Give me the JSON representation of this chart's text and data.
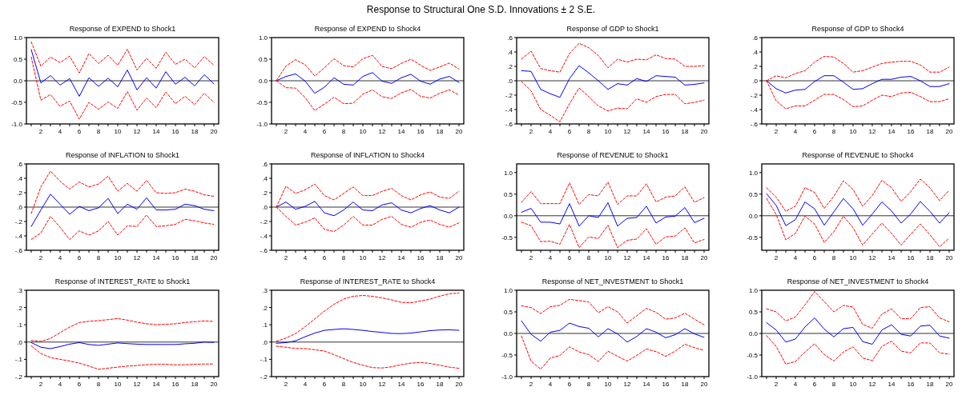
{
  "chart_data": [
    {
      "type": "other",
      "title": "Response to Structural One S.D. Innovations ± 2 S.E."
    },
    {
      "type": "line",
      "title": "Response of EXPEND to Shock1",
      "x": [
        1,
        2,
        3,
        4,
        5,
        6,
        7,
        8,
        9,
        10,
        11,
        12,
        13,
        14,
        15,
        16,
        17,
        18,
        19,
        20
      ],
      "xlim": [
        0.5,
        20.5
      ],
      "xticks": [
        {
          "value": 1,
          "label": null
        },
        2,
        {
          "value": 3,
          "label": null
        },
        4,
        {
          "value": 5,
          "label": null
        },
        6,
        {
          "value": 7,
          "label": null
        },
        8,
        {
          "value": 9,
          "label": null
        },
        10,
        {
          "value": 11,
          "label": null
        },
        12,
        {
          "value": 13,
          "label": null
        },
        14,
        {
          "value": 15,
          "label": null
        },
        16,
        {
          "value": 17,
          "label": null
        },
        18,
        {
          "value": 19,
          "label": null
        },
        20
      ],
      "ylim": [
        -1,
        1
      ],
      "yticks": [
        {
          "value": -1,
          "label": "-1.0"
        },
        {
          "value": -0.5,
          "label": "-0.5"
        },
        {
          "value": 0,
          "label": "0.0"
        },
        {
          "value": 0.5,
          "label": "0.5"
        },
        {
          "value": 1,
          "label": "1.0"
        }
      ],
      "ref_lines": [
        {
          "axis": "y",
          "value": 0,
          "color": "#333333"
        }
      ],
      "series": [
        {
          "color": "#0000ff",
          "line_style": "solid",
          "values": [
            0.72,
            -0.05,
            0.12,
            -0.1,
            0.05,
            -0.36,
            0.07,
            -0.13,
            0.06,
            -0.14,
            0.25,
            -0.21,
            0.07,
            -0.17,
            0.21,
            -0.08,
            0.08,
            -0.12,
            0.14,
            -0.07
          ]
        },
        {
          "color": "#ff0000",
          "line_style": "dashed",
          "values": [
            0.9,
            0.34,
            0.55,
            0.42,
            0.57,
            0.18,
            0.63,
            0.4,
            0.59,
            0.36,
            0.73,
            0.25,
            0.52,
            0.29,
            0.66,
            0.38,
            0.5,
            0.3,
            0.56,
            0.36
          ]
        },
        {
          "color": "#ff0000",
          "line_style": "dashed",
          "values": [
            0.55,
            -0.45,
            -0.32,
            -0.59,
            -0.47,
            -0.89,
            -0.5,
            -0.66,
            -0.49,
            -0.64,
            -0.25,
            -0.68,
            -0.4,
            -0.62,
            -0.26,
            -0.53,
            -0.36,
            -0.55,
            -0.29,
            -0.5
          ]
        }
      ]
    },
    {
      "type": "line",
      "title": "Response of EXPEND to Shock4",
      "x": [
        1,
        2,
        3,
        4,
        5,
        6,
        7,
        8,
        9,
        10,
        11,
        12,
        13,
        14,
        15,
        16,
        17,
        18,
        19,
        20
      ],
      "xlim": [
        0.5,
        20.5
      ],
      "xticks": [
        {
          "value": 1,
          "label": null
        },
        2,
        {
          "value": 3,
          "label": null
        },
        4,
        {
          "value": 5,
          "label": null
        },
        6,
        {
          "value": 7,
          "label": null
        },
        8,
        {
          "value": 9,
          "label": null
        },
        10,
        {
          "value": 11,
          "label": null
        },
        12,
        {
          "value": 13,
          "label": null
        },
        14,
        {
          "value": 15,
          "label": null
        },
        16,
        {
          "value": 17,
          "label": null
        },
        18,
        {
          "value": 19,
          "label": null
        },
        20
      ],
      "ylim": [
        -1,
        1
      ],
      "yticks": [
        {
          "value": -1,
          "label": "-1.0"
        },
        {
          "value": -0.5,
          "label": "-0.5"
        },
        {
          "value": 0,
          "label": "0.0"
        },
        {
          "value": 0.5,
          "label": "0.5"
        },
        {
          "value": 1,
          "label": "1.0"
        }
      ],
      "ref_lines": [
        {
          "axis": "y",
          "value": 0,
          "color": "#333333"
        }
      ],
      "series": [
        {
          "color": "#0000ff",
          "line_style": "solid",
          "values": [
            0,
            0.1,
            0.16,
            -0.01,
            -0.29,
            -0.15,
            0.07,
            -0.08,
            -0.1,
            0.1,
            0.19,
            -0.01,
            -0.06,
            0.07,
            0.15,
            -0.01,
            -0.08,
            0.04,
            0.1,
            -0.04
          ]
        },
        {
          "color": "#ff0000",
          "line_style": "dashed",
          "values": [
            0,
            0.34,
            0.49,
            0.37,
            0.11,
            0.3,
            0.51,
            0.35,
            0.32,
            0.51,
            0.59,
            0.33,
            0.28,
            0.4,
            0.5,
            0.36,
            0.24,
            0.32,
            0.41,
            0.27
          ]
        },
        {
          "color": "#ff0000",
          "line_style": "dashed",
          "values": [
            0,
            -0.16,
            -0.17,
            -0.39,
            -0.69,
            -0.54,
            -0.38,
            -0.53,
            -0.52,
            -0.31,
            -0.21,
            -0.37,
            -0.41,
            -0.28,
            -0.2,
            -0.36,
            -0.4,
            -0.29,
            -0.21,
            -0.33
          ]
        }
      ]
    },
    {
      "type": "line",
      "title": "Response of GDP to Shock1",
      "x": [
        1,
        2,
        3,
        4,
        5,
        6,
        7,
        8,
        9,
        10,
        11,
        12,
        13,
        14,
        15,
        16,
        17,
        18,
        19,
        20
      ],
      "xlim": [
        0.5,
        20.5
      ],
      "xticks": [
        {
          "value": 1,
          "label": null
        },
        2,
        {
          "value": 3,
          "label": null
        },
        4,
        {
          "value": 5,
          "label": null
        },
        6,
        {
          "value": 7,
          "label": null
        },
        8,
        {
          "value": 9,
          "label": null
        },
        10,
        {
          "value": 11,
          "label": null
        },
        12,
        {
          "value": 13,
          "label": null
        },
        14,
        {
          "value": 15,
          "label": null
        },
        16,
        {
          "value": 17,
          "label": null
        },
        18,
        {
          "value": 19,
          "label": null
        },
        20
      ],
      "ylim": [
        -0.6,
        0.6
      ],
      "yticks": [
        {
          "value": -0.6,
          "label": "-.6"
        },
        {
          "value": -0.4,
          "label": "-.4"
        },
        {
          "value": -0.2,
          "label": "-.2"
        },
        {
          "value": 0,
          "label": ".0"
        },
        {
          "value": 0.2,
          "label": ".2"
        },
        {
          "value": 0.4,
          "label": ".4"
        },
        {
          "value": 0.6,
          "label": ".6"
        }
      ],
      "ref_lines": [
        {
          "axis": "y",
          "value": 0,
          "color": "#333333"
        }
      ],
      "series": [
        {
          "color": "#0000ff",
          "line_style": "solid",
          "values": [
            0.14,
            0.13,
            -0.12,
            -0.18,
            -0.23,
            0.03,
            0.21,
            0.11,
            0.0,
            -0.12,
            -0.04,
            -0.06,
            0.03,
            -0.01,
            0.07,
            0.06,
            0.05,
            -0.06,
            -0.05,
            -0.03
          ]
        },
        {
          "color": "#ff0000",
          "line_style": "dashed",
          "values": [
            0.3,
            0.41,
            0.17,
            0.14,
            0.12,
            0.38,
            0.52,
            0.46,
            0.35,
            0.18,
            0.3,
            0.26,
            0.3,
            0.29,
            0.36,
            0.31,
            0.3,
            0.2,
            0.2,
            0.21
          ]
        },
        {
          "color": "#ff0000",
          "line_style": "dashed",
          "values": [
            -0.01,
            -0.14,
            -0.4,
            -0.48,
            -0.57,
            -0.32,
            -0.1,
            -0.22,
            -0.35,
            -0.42,
            -0.38,
            -0.39,
            -0.25,
            -0.3,
            -0.22,
            -0.19,
            -0.19,
            -0.32,
            -0.3,
            -0.27
          ]
        }
      ]
    },
    {
      "type": "line",
      "title": "Response of GDP to Shock4",
      "x": [
        1,
        2,
        3,
        4,
        5,
        6,
        7,
        8,
        9,
        10,
        11,
        12,
        13,
        14,
        15,
        16,
        17,
        18,
        19,
        20
      ],
      "xlim": [
        0.5,
        20.5
      ],
      "xticks": [
        {
          "value": 1,
          "label": null
        },
        2,
        {
          "value": 3,
          "label": null
        },
        4,
        {
          "value": 5,
          "label": null
        },
        6,
        {
          "value": 7,
          "label": null
        },
        8,
        {
          "value": 9,
          "label": null
        },
        10,
        {
          "value": 11,
          "label": null
        },
        12,
        {
          "value": 13,
          "label": null
        },
        14,
        {
          "value": 15,
          "label": null
        },
        16,
        {
          "value": 17,
          "label": null
        },
        18,
        {
          "value": 19,
          "label": null
        },
        20
      ],
      "ylim": [
        -0.6,
        0.6
      ],
      "yticks": [
        {
          "value": -0.6,
          "label": "-.6"
        },
        {
          "value": -0.4,
          "label": "-.4"
        },
        {
          "value": -0.2,
          "label": "-.2"
        },
        {
          "value": 0,
          "label": ".0"
        },
        {
          "value": 0.2,
          "label": ".2"
        },
        {
          "value": 0.4,
          "label": ".4"
        },
        {
          "value": 0.6,
          "label": ".6"
        }
      ],
      "ref_lines": [
        {
          "axis": "y",
          "value": 0,
          "color": "#333333"
        }
      ],
      "series": [
        {
          "color": "#0000ff",
          "line_style": "solid",
          "values": [
            0,
            -0.11,
            -0.17,
            -0.13,
            -0.12,
            -0.01,
            0.07,
            0.07,
            -0.02,
            -0.12,
            -0.11,
            -0.04,
            0.02,
            0.02,
            0.05,
            0.06,
            0.0,
            -0.08,
            -0.08,
            -0.04
          ]
        },
        {
          "color": "#ff0000",
          "line_style": "dashed",
          "values": [
            0,
            0.07,
            0.04,
            0.1,
            0.14,
            0.26,
            0.34,
            0.33,
            0.24,
            0.12,
            0.14,
            0.19,
            0.24,
            0.26,
            0.27,
            0.27,
            0.22,
            0.12,
            0.12,
            0.19
          ]
        },
        {
          "color": "#ff0000",
          "line_style": "dashed",
          "values": [
            0,
            -0.28,
            -0.39,
            -0.35,
            -0.35,
            -0.27,
            -0.19,
            -0.19,
            -0.26,
            -0.36,
            -0.35,
            -0.27,
            -0.2,
            -0.22,
            -0.17,
            -0.16,
            -0.22,
            -0.29,
            -0.29,
            -0.25
          ]
        }
      ]
    },
    {
      "type": "line",
      "title": "Response of INFLATION to Shock1",
      "x": [
        1,
        2,
        3,
        4,
        5,
        6,
        7,
        8,
        9,
        10,
        11,
        12,
        13,
        14,
        15,
        16,
        17,
        18,
        19,
        20
      ],
      "xlim": [
        0.5,
        20.5
      ],
      "xticks": [
        {
          "value": 1,
          "label": null
        },
        2,
        {
          "value": 3,
          "label": null
        },
        4,
        {
          "value": 5,
          "label": null
        },
        6,
        {
          "value": 7,
          "label": null
        },
        8,
        {
          "value": 9,
          "label": null
        },
        10,
        {
          "value": 11,
          "label": null
        },
        12,
        {
          "value": 13,
          "label": null
        },
        14,
        {
          "value": 15,
          "label": null
        },
        16,
        {
          "value": 17,
          "label": null
        },
        18,
        {
          "value": 19,
          "label": null
        },
        20
      ],
      "ylim": [
        -0.6,
        0.6
      ],
      "yticks": [
        {
          "value": -0.6,
          "label": "-.6"
        },
        {
          "value": -0.4,
          "label": "-.4"
        },
        {
          "value": -0.2,
          "label": "-.2"
        },
        {
          "value": 0,
          "label": ".0"
        },
        {
          "value": 0.2,
          "label": ".2"
        },
        {
          "value": 0.4,
          "label": ".4"
        },
        {
          "value": 0.6,
          "label": ".6"
        }
      ],
      "ref_lines": [
        {
          "axis": "y",
          "value": 0,
          "color": "#333333"
        }
      ],
      "series": [
        {
          "color": "#0000ff",
          "line_style": "solid",
          "values": [
            -0.27,
            -0.04,
            0.18,
            0.04,
            -0.1,
            0.01,
            -0.05,
            -0.01,
            0.12,
            -0.09,
            0.04,
            -0.03,
            0.13,
            -0.04,
            -0.04,
            -0.03,
            0.04,
            0.02,
            -0.03,
            -0.05
          ]
        },
        {
          "color": "#ff0000",
          "line_style": "dashed",
          "values": [
            -0.09,
            0.28,
            0.5,
            0.36,
            0.25,
            0.35,
            0.28,
            0.32,
            0.43,
            0.22,
            0.33,
            0.22,
            0.37,
            0.2,
            0.19,
            0.2,
            0.25,
            0.22,
            0.17,
            0.15
          ]
        },
        {
          "color": "#ff0000",
          "line_style": "dashed",
          "values": [
            -0.45,
            -0.36,
            -0.13,
            -0.28,
            -0.45,
            -0.33,
            -0.39,
            -0.33,
            -0.2,
            -0.39,
            -0.26,
            -0.27,
            -0.11,
            -0.27,
            -0.26,
            -0.24,
            -0.17,
            -0.19,
            -0.22,
            -0.24
          ]
        }
      ]
    },
    {
      "type": "line",
      "title": "Response of INFLATION to Shock4",
      "x": [
        1,
        2,
        3,
        4,
        5,
        6,
        7,
        8,
        9,
        10,
        11,
        12,
        13,
        14,
        15,
        16,
        17,
        18,
        19,
        20
      ],
      "xlim": [
        0.5,
        20.5
      ],
      "xticks": [
        {
          "value": 1,
          "label": null
        },
        2,
        {
          "value": 3,
          "label": null
        },
        4,
        {
          "value": 5,
          "label": null
        },
        6,
        {
          "value": 7,
          "label": null
        },
        8,
        {
          "value": 9,
          "label": null
        },
        10,
        {
          "value": 11,
          "label": null
        },
        12,
        {
          "value": 13,
          "label": null
        },
        14,
        {
          "value": 15,
          "label": null
        },
        16,
        {
          "value": 17,
          "label": null
        },
        18,
        {
          "value": 19,
          "label": null
        },
        20
      ],
      "ylim": [
        -0.6,
        0.6
      ],
      "yticks": [
        {
          "value": -0.6,
          "label": "-.6"
        },
        {
          "value": -0.4,
          "label": "-.4"
        },
        {
          "value": -0.2,
          "label": "-.2"
        },
        {
          "value": 0,
          "label": ".0"
        },
        {
          "value": 0.2,
          "label": ".2"
        },
        {
          "value": 0.4,
          "label": ".4"
        },
        {
          "value": 0.6,
          "label": ".6"
        }
      ],
      "ref_lines": [
        {
          "axis": "y",
          "value": 0,
          "color": "#333333"
        }
      ],
      "series": [
        {
          "color": "#0000ff",
          "line_style": "solid",
          "values": [
            0,
            0.07,
            -0.03,
            0.01,
            0.08,
            -0.08,
            -0.12,
            -0.04,
            0.07,
            -0.04,
            -0.05,
            0.03,
            0.06,
            -0.04,
            -0.08,
            -0.02,
            0.02,
            -0.04,
            -0.08,
            0
          ]
        },
        {
          "color": "#ff0000",
          "line_style": "dashed",
          "values": [
            0,
            0.29,
            0.19,
            0.24,
            0.32,
            0.16,
            0.1,
            0.19,
            0.28,
            0.16,
            0.16,
            0.22,
            0.26,
            0.16,
            0.1,
            0.17,
            0.21,
            0.14,
            0.12,
            0.22
          ]
        },
        {
          "color": "#ff0000",
          "line_style": "dashed",
          "values": [
            0,
            -0.13,
            -0.25,
            -0.21,
            -0.15,
            -0.31,
            -0.34,
            -0.25,
            -0.13,
            -0.25,
            -0.25,
            -0.17,
            -0.13,
            -0.24,
            -0.28,
            -0.21,
            -0.18,
            -0.24,
            -0.28,
            -0.22
          ]
        }
      ]
    },
    {
      "type": "line",
      "title": "Response of REVENUE to Shock1",
      "x": [
        1,
        2,
        3,
        4,
        5,
        6,
        7,
        8,
        9,
        10,
        11,
        12,
        13,
        14,
        15,
        16,
        17,
        18,
        19,
        20
      ],
      "xlim": [
        0.5,
        20.5
      ],
      "xticks": [
        {
          "value": 1,
          "label": null
        },
        2,
        {
          "value": 3,
          "label": null
        },
        4,
        {
          "value": 5,
          "label": null
        },
        6,
        {
          "value": 7,
          "label": null
        },
        8,
        {
          "value": 9,
          "label": null
        },
        10,
        {
          "value": 11,
          "label": null
        },
        12,
        {
          "value": 13,
          "label": null
        },
        14,
        {
          "value": 15,
          "label": null
        },
        16,
        {
          "value": 17,
          "label": null
        },
        18,
        {
          "value": 19,
          "label": null
        },
        20
      ],
      "ylim": [
        -0.8,
        1.2
      ],
      "yticks": [
        {
          "value": -0.5,
          "label": "-0.5"
        },
        {
          "value": 0,
          "label": "0.0"
        },
        {
          "value": 0.5,
          "label": "0.5"
        },
        {
          "value": 1,
          "label": "1.0"
        }
      ],
      "ref_lines": [
        {
          "axis": "y",
          "value": 0,
          "color": "#333333"
        }
      ],
      "series": [
        {
          "color": "#0000ff",
          "line_style": "solid",
          "values": [
            0.08,
            0.17,
            -0.15,
            -0.15,
            -0.19,
            0.28,
            -0.24,
            0.0,
            -0.04,
            0.3,
            -0.24,
            -0.06,
            -0.04,
            0.22,
            -0.17,
            -0.03,
            -0.01,
            0.19,
            -0.16,
            -0.06
          ]
        },
        {
          "color": "#ff0000",
          "line_style": "dashed",
          "values": [
            0.31,
            0.56,
            0.28,
            0.28,
            0.28,
            0.76,
            0.26,
            0.49,
            0.46,
            0.78,
            0.26,
            0.46,
            0.46,
            0.74,
            0.32,
            0.43,
            0.46,
            0.67,
            0.31,
            0.42
          ]
        },
        {
          "color": "#ff0000",
          "line_style": "dashed",
          "values": [
            -0.15,
            -0.23,
            -0.6,
            -0.59,
            -0.66,
            -0.2,
            -0.74,
            -0.49,
            -0.53,
            -0.22,
            -0.74,
            -0.57,
            -0.54,
            -0.3,
            -0.66,
            -0.49,
            -0.47,
            -0.28,
            -0.63,
            -0.55
          ]
        }
      ]
    },
    {
      "type": "line",
      "title": "Response of REVENUE to Shock4",
      "x": [
        1,
        2,
        3,
        4,
        5,
        6,
        7,
        8,
        9,
        10,
        11,
        12,
        13,
        14,
        15,
        16,
        17,
        18,
        19,
        20
      ],
      "xlim": [
        0.5,
        20.5
      ],
      "xticks": [
        {
          "value": 1,
          "label": null
        },
        2,
        {
          "value": 3,
          "label": null
        },
        4,
        {
          "value": 5,
          "label": null
        },
        6,
        {
          "value": 7,
          "label": null
        },
        8,
        {
          "value": 9,
          "label": null
        },
        10,
        {
          "value": 11,
          "label": null
        },
        12,
        {
          "value": 13,
          "label": null
        },
        14,
        {
          "value": 15,
          "label": null
        },
        16,
        {
          "value": 17,
          "label": null
        },
        18,
        {
          "value": 19,
          "label": null
        },
        20
      ],
      "ylim": [
        -0.8,
        1.2
      ],
      "yticks": [
        {
          "value": -0.5,
          "label": "-0.5"
        },
        {
          "value": 0,
          "label": "0.0"
        },
        {
          "value": 0.5,
          "label": "0.5"
        },
        {
          "value": 1,
          "label": "1.0"
        }
      ],
      "ref_lines": [
        {
          "axis": "y",
          "value": 0,
          "color": "#333333"
        }
      ],
      "series": [
        {
          "color": "#0000ff",
          "line_style": "solid",
          "values": [
            0.51,
            0.24,
            -0.23,
            -0.09,
            0.32,
            0.16,
            -0.22,
            0.09,
            0.4,
            0.16,
            -0.22,
            0.04,
            0.32,
            0.11,
            -0.17,
            0.04,
            0.33,
            0.1,
            -0.17,
            0.07
          ]
        },
        {
          "color": "#ff0000",
          "line_style": "dashed",
          "values": [
            0.65,
            0.43,
            0.1,
            0.22,
            0.65,
            0.54,
            0.17,
            0.45,
            0.81,
            0.61,
            0.22,
            0.47,
            0.82,
            0.65,
            0.33,
            0.56,
            0.85,
            0.65,
            0.35,
            0.59
          ]
        },
        {
          "color": "#ff0000",
          "line_style": "dashed",
          "values": [
            0.4,
            0.03,
            -0.56,
            -0.41,
            -0.01,
            -0.19,
            -0.62,
            -0.37,
            -0.01,
            -0.28,
            -0.68,
            -0.42,
            -0.17,
            -0.41,
            -0.68,
            -0.43,
            -0.19,
            -0.44,
            -0.72,
            -0.52
          ]
        }
      ]
    },
    {
      "type": "line",
      "title": "Response of INTEREST_RATE to Shock1",
      "x": [
        1,
        2,
        3,
        4,
        5,
        6,
        7,
        8,
        9,
        10,
        11,
        12,
        13,
        14,
        15,
        16,
        17,
        18,
        19,
        20
      ],
      "xlim": [
        0.5,
        20.5
      ],
      "xticks": [
        {
          "value": 1,
          "label": null
        },
        2,
        {
          "value": 3,
          "label": null
        },
        4,
        {
          "value": 5,
          "label": null
        },
        6,
        {
          "value": 7,
          "label": null
        },
        8,
        {
          "value": 9,
          "label": null
        },
        10,
        {
          "value": 11,
          "label": null
        },
        12,
        {
          "value": 13,
          "label": null
        },
        14,
        {
          "value": 15,
          "label": null
        },
        16,
        {
          "value": 17,
          "label": null
        },
        18,
        {
          "value": 19,
          "label": null
        },
        20
      ],
      "ylim": [
        -0.2,
        0.3
      ],
      "yticks": [
        {
          "value": -0.2,
          "label": "-.2"
        },
        {
          "value": -0.1,
          "label": "-.1"
        },
        {
          "value": 0,
          "label": ".0"
        },
        {
          "value": 0.1,
          "label": ".1"
        },
        {
          "value": 0.2,
          "label": ".2"
        },
        {
          "value": 0.3,
          "label": ".3"
        }
      ],
      "ref_lines": [
        {
          "axis": "y",
          "value": 0,
          "color": "#333333"
        }
      ],
      "series": [
        {
          "color": "#0000ff",
          "line_style": "solid",
          "values": [
            -0.003,
            -0.03,
            -0.038,
            -0.026,
            -0.012,
            -0.003,
            -0.014,
            -0.019,
            -0.012,
            -0.005,
            -0.009,
            -0.012,
            -0.014,
            -0.014,
            -0.014,
            -0.014,
            -0.01,
            -0.007,
            0.0,
            -0.002
          ]
        },
        {
          "color": "#ff0000",
          "line_style": "dashed",
          "values": [
            0.009,
            0.004,
            0.021,
            0.054,
            0.087,
            0.113,
            0.12,
            0.124,
            0.13,
            0.136,
            0.127,
            0.115,
            0.106,
            0.101,
            0.103,
            0.106,
            0.113,
            0.118,
            0.122,
            0.12
          ]
        },
        {
          "color": "#ff0000",
          "line_style": "dashed",
          "values": [
            -0.022,
            -0.066,
            -0.09,
            -0.1,
            -0.11,
            -0.122,
            -0.139,
            -0.158,
            -0.151,
            -0.145,
            -0.139,
            -0.136,
            -0.131,
            -0.129,
            -0.129,
            -0.132,
            -0.131,
            -0.129,
            -0.127,
            -0.127
          ]
        }
      ]
    },
    {
      "type": "line",
      "title": "Response of INTEREST_RATE to Shock4",
      "x": [
        1,
        2,
        3,
        4,
        5,
        6,
        7,
        8,
        9,
        10,
        11,
        12,
        13,
        14,
        15,
        16,
        17,
        18,
        19,
        20
      ],
      "xlim": [
        0.5,
        20.5
      ],
      "xticks": [
        {
          "value": 1,
          "label": null
        },
        2,
        {
          "value": 3,
          "label": null
        },
        4,
        {
          "value": 5,
          "label": null
        },
        6,
        {
          "value": 7,
          "label": null
        },
        8,
        {
          "value": 9,
          "label": null
        },
        10,
        {
          "value": 11,
          "label": null
        },
        12,
        {
          "value": 13,
          "label": null
        },
        14,
        {
          "value": 15,
          "label": null
        },
        16,
        {
          "value": 17,
          "label": null
        },
        18,
        {
          "value": 19,
          "label": null
        },
        20
      ],
      "ylim": [
        -0.2,
        0.3
      ],
      "yticks": [
        {
          "value": -0.2,
          "label": "-.2"
        },
        {
          "value": -0.1,
          "label": "-.1"
        },
        {
          "value": 0,
          "label": ".0"
        },
        {
          "value": 0.1,
          "label": ".1"
        },
        {
          "value": 0.2,
          "label": ".2"
        },
        {
          "value": 0.3,
          "label": ".3"
        }
      ],
      "ref_lines": [
        {
          "axis": "y",
          "value": 0,
          "color": "#333333"
        }
      ],
      "series": [
        {
          "color": "#0000ff",
          "line_style": "solid",
          "values": [
            -0.007,
            -0.003,
            0.007,
            0.031,
            0.052,
            0.068,
            0.073,
            0.077,
            0.073,
            0.068,
            0.061,
            0.056,
            0.05,
            0.049,
            0.052,
            0.059,
            0.066,
            0.07,
            0.071,
            0.068
          ]
        },
        {
          "color": "#ff0000",
          "line_style": "dashed",
          "values": [
            0.005,
            0.023,
            0.049,
            0.089,
            0.134,
            0.179,
            0.219,
            0.249,
            0.265,
            0.27,
            0.265,
            0.256,
            0.244,
            0.23,
            0.228,
            0.237,
            0.249,
            0.266,
            0.28,
            0.284
          ]
        },
        {
          "color": "#ff0000",
          "line_style": "dashed",
          "values": [
            -0.024,
            -0.03,
            -0.037,
            -0.038,
            -0.044,
            -0.052,
            -0.073,
            -0.096,
            -0.118,
            -0.134,
            -0.148,
            -0.15,
            -0.143,
            -0.131,
            -0.122,
            -0.118,
            -0.124,
            -0.134,
            -0.145,
            -0.152
          ]
        }
      ]
    },
    {
      "type": "line",
      "title": "Response of NET_INVESTMENT to Shock1",
      "x": [
        1,
        2,
        3,
        4,
        5,
        6,
        7,
        8,
        9,
        10,
        11,
        12,
        13,
        14,
        15,
        16,
        17,
        18,
        19,
        20
      ],
      "xlim": [
        0.5,
        20.5
      ],
      "xticks": [
        {
          "value": 1,
          "label": null
        },
        2,
        {
          "value": 3,
          "label": null
        },
        4,
        {
          "value": 5,
          "label": null
        },
        6,
        {
          "value": 7,
          "label": null
        },
        8,
        {
          "value": 9,
          "label": null
        },
        10,
        {
          "value": 11,
          "label": null
        },
        12,
        {
          "value": 13,
          "label": null
        },
        14,
        {
          "value": 15,
          "label": null
        },
        16,
        {
          "value": 17,
          "label": null
        },
        18,
        {
          "value": 19,
          "label": null
        },
        20
      ],
      "ylim": [
        -1,
        1
      ],
      "yticks": [
        {
          "value": -1,
          "label": "-1.0"
        },
        {
          "value": -0.5,
          "label": "-0.5"
        },
        {
          "value": 0,
          "label": "0.0"
        },
        {
          "value": 0.5,
          "label": "0.5"
        },
        {
          "value": 1,
          "label": "1.0"
        }
      ],
      "ref_lines": [
        {
          "axis": "y",
          "value": 0,
          "color": "#333333"
        }
      ],
      "series": [
        {
          "color": "#0000ff",
          "line_style": "solid",
          "values": [
            0.29,
            -0.02,
            -0.18,
            0.03,
            0.07,
            0.24,
            0.16,
            0.12,
            -0.08,
            0.11,
            -0.01,
            -0.2,
            -0.07,
            0.11,
            0.03,
            -0.1,
            -0.03,
            0.11,
            -0.01,
            -0.09
          ]
        },
        {
          "color": "#ff0000",
          "line_style": "dashed",
          "values": [
            0.64,
            0.6,
            0.46,
            0.62,
            0.65,
            0.79,
            0.76,
            0.73,
            0.48,
            0.62,
            0.5,
            0.24,
            0.41,
            0.58,
            0.49,
            0.33,
            0.36,
            0.47,
            0.33,
            0.2
          ]
        },
        {
          "color": "#ff0000",
          "line_style": "dashed",
          "values": [
            -0.06,
            -0.64,
            -0.83,
            -0.57,
            -0.51,
            -0.31,
            -0.43,
            -0.49,
            -0.65,
            -0.41,
            -0.53,
            -0.64,
            -0.51,
            -0.36,
            -0.42,
            -0.53,
            -0.41,
            -0.25,
            -0.33,
            -0.39
          ]
        }
      ]
    },
    {
      "type": "line",
      "title": "Response of NET_INVESTMENT to Shock4",
      "x": [
        1,
        2,
        3,
        4,
        5,
        6,
        7,
        8,
        9,
        10,
        11,
        12,
        13,
        14,
        15,
        16,
        17,
        18,
        19,
        20
      ],
      "xlim": [
        0.5,
        20.5
      ],
      "xticks": [
        {
          "value": 1,
          "label": null
        },
        2,
        {
          "value": 3,
          "label": null
        },
        4,
        {
          "value": 5,
          "label": null
        },
        6,
        {
          "value": 7,
          "label": null
        },
        8,
        {
          "value": 9,
          "label": null
        },
        10,
        {
          "value": 11,
          "label": null
        },
        12,
        {
          "value": 13,
          "label": null
        },
        14,
        {
          "value": 15,
          "label": null
        },
        16,
        {
          "value": 17,
          "label": null
        },
        18,
        {
          "value": 19,
          "label": null
        },
        20
      ],
      "ylim": [
        -1,
        1
      ],
      "yticks": [
        {
          "value": -1,
          "label": "-1.0"
        },
        {
          "value": -0.5,
          "label": "-0.5"
        },
        {
          "value": 0,
          "label": "0.0"
        },
        {
          "value": 0.5,
          "label": "0.5"
        },
        {
          "value": 1,
          "label": "1.0"
        }
      ],
      "ref_lines": [
        {
          "axis": "y",
          "value": 0,
          "color": "#333333"
        }
      ],
      "series": [
        {
          "color": "#0000ff",
          "line_style": "solid",
          "values": [
            0.25,
            0.08,
            -0.2,
            -0.13,
            0.15,
            0.36,
            0.1,
            -0.08,
            0.11,
            0.14,
            -0.19,
            -0.25,
            0.08,
            0.2,
            -0.02,
            -0.06,
            0.17,
            0.19,
            -0.06,
            -0.11
          ]
        },
        {
          "color": "#ff0000",
          "line_style": "dashed",
          "values": [
            0.57,
            0.5,
            0.29,
            0.38,
            0.66,
            0.97,
            0.74,
            0.5,
            0.65,
            0.61,
            0.21,
            0.12,
            0.45,
            0.57,
            0.34,
            0.34,
            0.6,
            0.62,
            0.36,
            0.27
          ]
        },
        {
          "color": "#ff0000",
          "line_style": "dashed",
          "values": [
            -0.05,
            -0.3,
            -0.71,
            -0.65,
            -0.43,
            -0.24,
            -0.49,
            -0.64,
            -0.43,
            -0.31,
            -0.57,
            -0.63,
            -0.3,
            -0.18,
            -0.41,
            -0.45,
            -0.22,
            -0.22,
            -0.45,
            -0.48
          ]
        }
      ]
    }
  ]
}
